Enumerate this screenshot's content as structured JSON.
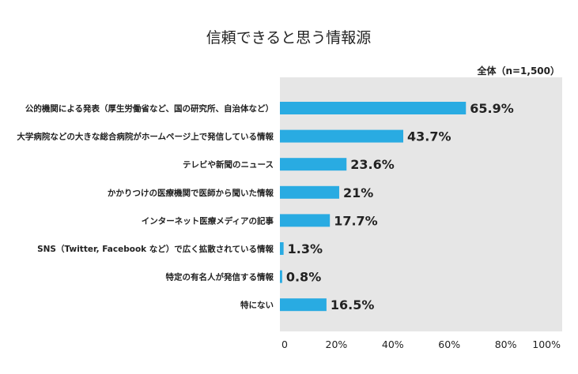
{
  "chart_data": {
    "type": "bar",
    "orientation": "horizontal",
    "title": "信頼できると思う情報源",
    "note": "全体（n=1,500）",
    "categories": [
      "公的機関による発表（厚生労働省など、国の研究所、自治体など）",
      "大学病院などの大きな総合病院がホームページ上で発信している情報",
      "テレビや新聞のニュース",
      "かかりつけの医療機関で医師から聞いた情報",
      "インターネット医療メディアの記事",
      "SNS（Twitter, Facebook など）で広く拡散されている情報",
      "特定の有名人が発信する情報",
      "特にない"
    ],
    "values": [
      65.9,
      43.7,
      23.6,
      21,
      17.7,
      1.3,
      0.8,
      16.5
    ],
    "value_labels": [
      "65.9%",
      "43.7%",
      "23.6%",
      "21%",
      "17.7%",
      "1.3%",
      "0.8%",
      "16.5%"
    ],
    "xlim": [
      0,
      100
    ],
    "x_ticks": [
      "0",
      "20%",
      "40%",
      "60%",
      "80%",
      "100%"
    ],
    "x_tick_values": [
      0,
      20,
      40,
      60,
      80,
      100
    ],
    "grid": false,
    "colors": {
      "bar": "#29abe2",
      "plot_bg": "#e6e6e6"
    }
  }
}
